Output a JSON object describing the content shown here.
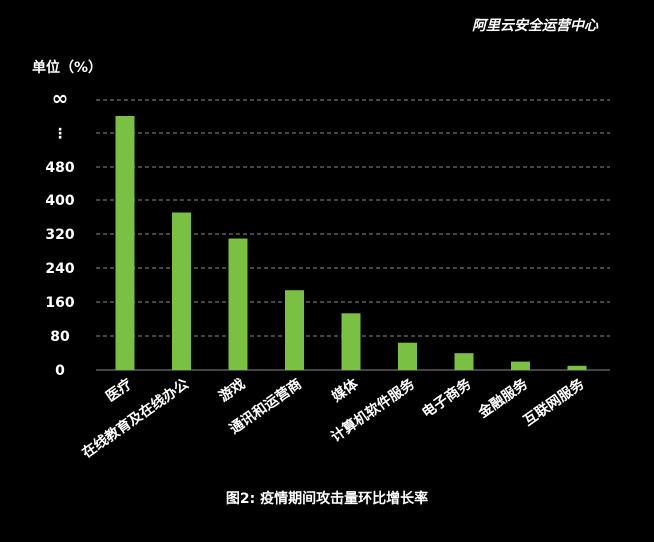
{
  "watermark": "阿里云安全运营中心",
  "colors": {
    "background": "#000000",
    "bar": "#7ac143",
    "grid": "#8a8a8a",
    "text": "#ffffff"
  },
  "chart_data": {
    "type": "bar",
    "title": "图2: 疫情期间攻击量环比增长率",
    "ylabel": "单位（%）",
    "xlabel": "",
    "ylim": [
      0,
      480
    ],
    "y_ticks": [
      "0",
      "80",
      "160",
      "240",
      "320",
      "400",
      "480",
      "⋮",
      "∞"
    ],
    "grid": "dashed horizontal",
    "categories": [
      "医疗",
      "在线教育及在线办公",
      "游戏",
      "通讯和运营商",
      "媒体",
      "计算机软件服务",
      "电子商务",
      "金融服务",
      "互联网服务"
    ],
    "values": [
      null,
      375,
      313,
      190,
      135,
      65,
      40,
      20,
      10
    ],
    "broken_axis_values": [
      "∞",
      null,
      null,
      null,
      null,
      null,
      null,
      null,
      null
    ]
  }
}
